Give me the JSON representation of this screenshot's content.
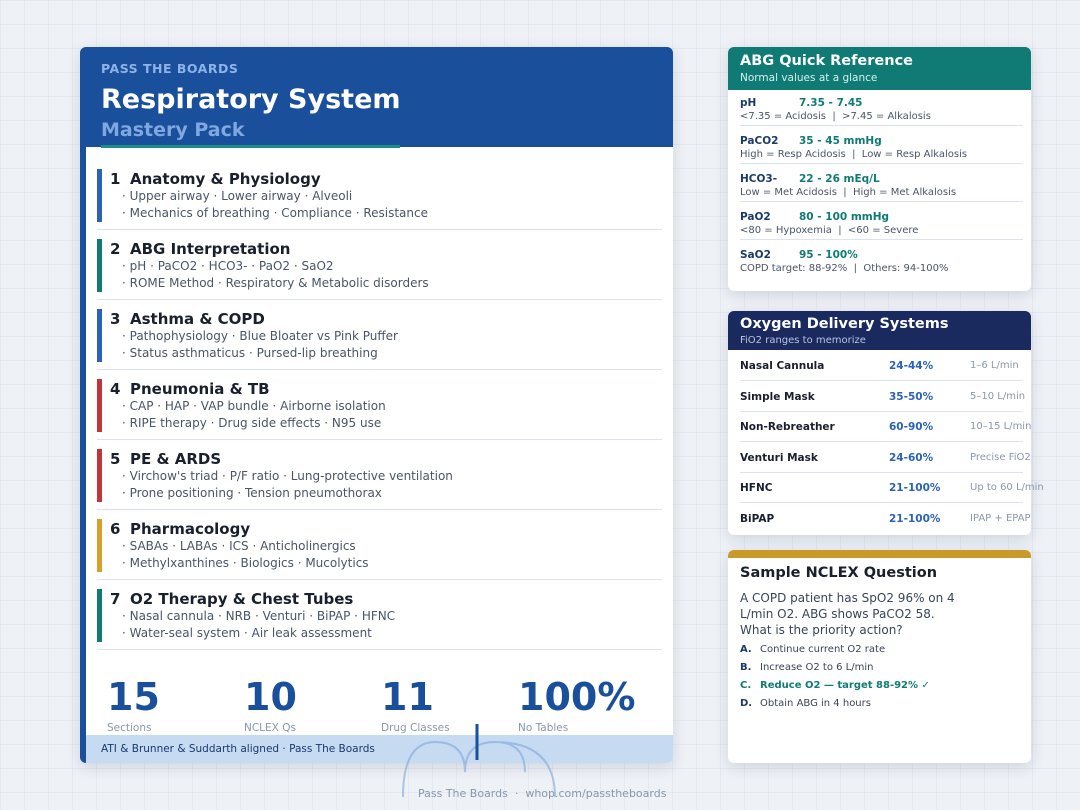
{
  "header": {
    "eyebrow": "PASS THE BOARDS",
    "title": "Respiratory System",
    "subtitle": "Mastery Pack"
  },
  "sections": [
    {
      "number": "1",
      "title": "Anatomy & Physiology",
      "color": "#2a62b8",
      "lines": [
        "· Upper airway · Lower airway · Alveoli",
        "· Mechanics of breathing · Compliance · Resistance"
      ]
    },
    {
      "number": "2",
      "title": "ABG Interpretation",
      "color": "#0f7b74",
      "lines": [
        "· pH · PaCO2 · HCO3- · PaO2 · SaO2",
        "· ROME Method · Respiratory & Metabolic disorders"
      ]
    },
    {
      "number": "3",
      "title": "Asthma & COPD",
      "color": "#2a62b8",
      "lines": [
        "· Pathophysiology · Blue Bloater vs Pink Puffer",
        "· Status asthmaticus · Pursed-lip breathing"
      ]
    },
    {
      "number": "4",
      "title": "Pneumonia & TB",
      "color": "#c0353a",
      "lines": [
        "· CAP · HAP · VAP bundle · Airborne isolation",
        "· RIPE therapy · Drug side effects · N95 use"
      ]
    },
    {
      "number": "5",
      "title": "PE & ARDS",
      "color": "#c0353a",
      "lines": [
        "· Virchow's triad · P/F ratio · Lung-protective ventilation",
        "· Prone positioning · Tension pneumothorax"
      ]
    },
    {
      "number": "6",
      "title": "Pharmacology",
      "color": "#d4a12a",
      "lines": [
        "· SABAs · LABAs · ICS · Anticholinergics",
        "· Methylxanthines · Biologics · Mucolytics"
      ]
    },
    {
      "number": "7",
      "title": "O2 Therapy & Chest Tubes",
      "color": "#0f7b74",
      "lines": [
        "· Nasal cannula · NRB · Venturi · BiPAP · HFNC",
        "· Water-seal system · Air leak assessment"
      ]
    }
  ],
  "stats": [
    {
      "value": "15",
      "label": "Sections"
    },
    {
      "value": "10",
      "label": "NCLEX Qs"
    },
    {
      "value": "11",
      "label": "Drug Classes"
    },
    {
      "value": "100%",
      "label": "No Tables"
    }
  ],
  "footer_strip": "ATI & Brunner & Suddarth aligned · Pass The Boards",
  "abg": {
    "title": "ABG Quick Reference",
    "subtitle": "Normal values at a glance",
    "rows": [
      {
        "name": "pH",
        "range": "7.35 - 7.45",
        "note": "<7.35 = Acidosis  |  >7.45 = Alkalosis"
      },
      {
        "name": "PaCO2",
        "range": "35 - 45 mmHg",
        "note": "High = Resp Acidosis  |  Low = Resp Alkalosis"
      },
      {
        "name": "HCO3-",
        "range": "22 - 26 mEq/L",
        "note": "Low = Met Acidosis  |  High = Met Alkalosis"
      },
      {
        "name": "PaO2",
        "range": "80 - 100 mmHg",
        "note": "<80 = Hypoxemia  |  <60 = Severe"
      },
      {
        "name": "SaO2",
        "range": "95 - 100%",
        "note": "COPD target: 88-92%  |  Others: 94-100%"
      }
    ]
  },
  "oxygen": {
    "title": "Oxygen Delivery Systems",
    "subtitle": "FiO2 ranges to memorize",
    "rows": [
      {
        "device": "Nasal Cannula",
        "fio2": "24-44%",
        "flow": "1–6 L/min"
      },
      {
        "device": "Simple Mask",
        "fio2": "35-50%",
        "flow": "5–10 L/min"
      },
      {
        "device": "Non-Rebreather",
        "fio2": "60-90%",
        "flow": "10–15 L/min"
      },
      {
        "device": "Venturi Mask",
        "fio2": "24-60%",
        "flow": "Precise FiO2"
      },
      {
        "device": "HFNC",
        "fio2": "21-100%",
        "flow": "Up to 60 L/min"
      },
      {
        "device": "BiPAP",
        "fio2": "21-100%",
        "flow": "IPAP + EPAP"
      }
    ]
  },
  "nclex": {
    "title": "Sample NCLEX Question",
    "question": "A COPD patient has SpO2 96% on 4 L/min O2. ABG shows PaCO2 58. What is the priority action?",
    "correct": 2,
    "options": [
      {
        "letter": "A.",
        "text": "Continue current O2 rate"
      },
      {
        "letter": "B.",
        "text": "Increase O2 to 6 L/min"
      },
      {
        "letter": "C.",
        "text": "Reduce O2 — target 88-92% ✓"
      },
      {
        "letter": "D.",
        "text": "Obtain ABG in 4 hours"
      }
    ]
  },
  "page_footer": "Pass The Boards  ·  whop.com/passtheboards"
}
